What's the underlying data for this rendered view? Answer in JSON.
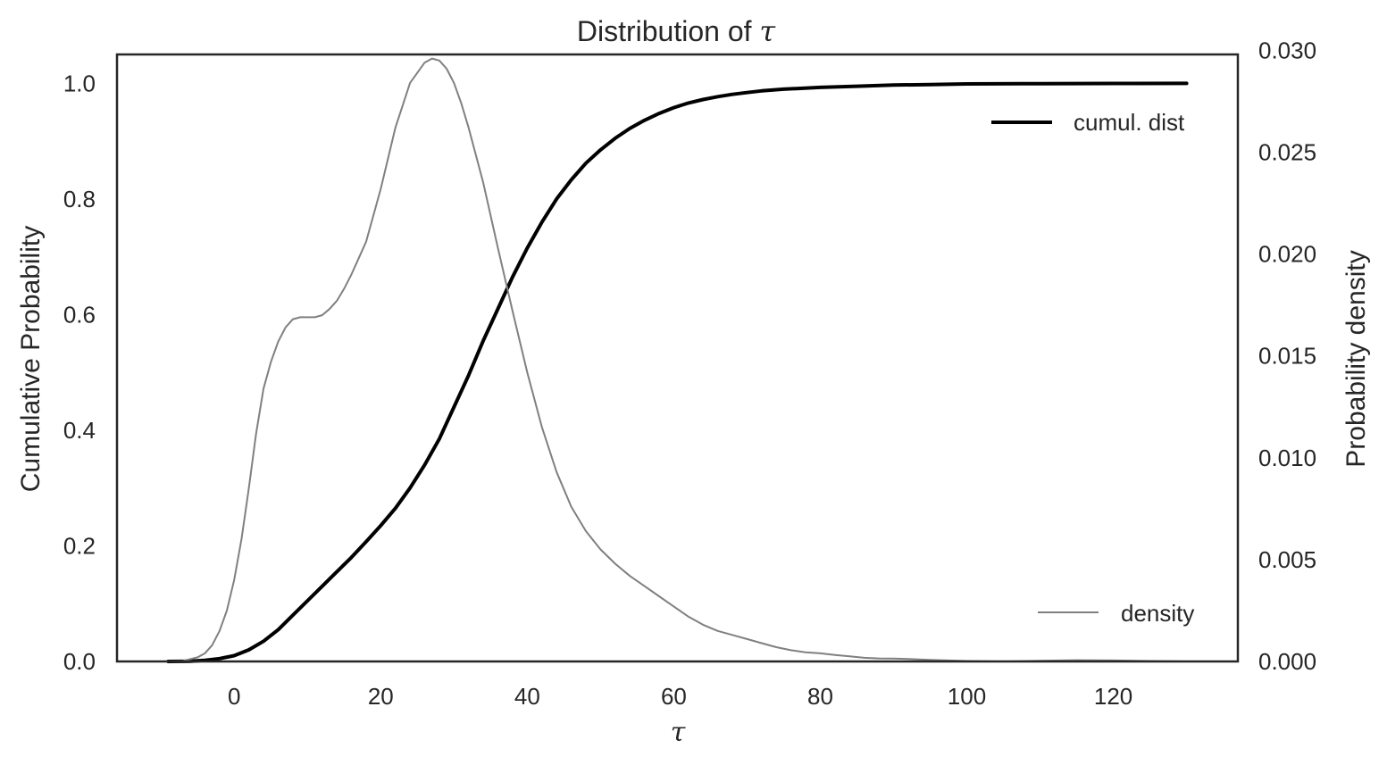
{
  "chart_data": {
    "type": "line",
    "title": "Distribution of",
    "title_symbol": "τ",
    "xlabel": "τ",
    "ylabel_left": "Cumulative Probability",
    "ylabel_right": "Probability density",
    "xlim": [
      -16,
      137
    ],
    "ylim_left": [
      0,
      1.05
    ],
    "ylim_right": [
      0,
      0.0298
    ],
    "x_ticks": [
      0,
      20,
      40,
      60,
      80,
      100,
      120
    ],
    "y_left_ticks": [
      "0.0",
      "0.2",
      "0.4",
      "0.6",
      "0.8",
      "1.0"
    ],
    "y_right_ticks": [
      "0.000",
      "0.005",
      "0.010",
      "0.015",
      "0.020",
      "0.025",
      "0.030"
    ],
    "grid": false,
    "legends": [
      {
        "label": "cumul. dist",
        "placement": "upper right"
      },
      {
        "label": "density",
        "placement": "lower right"
      }
    ],
    "series": [
      {
        "name": "cumul. dist",
        "axis": "left",
        "color": "#000000",
        "x": [
          -9,
          -6,
          -4,
          -2,
          0,
          2,
          4,
          6,
          8,
          10,
          12,
          14,
          16,
          18,
          20,
          22,
          24,
          26,
          28,
          30,
          32,
          34,
          36,
          38,
          40,
          42,
          44,
          46,
          48,
          50,
          52,
          54,
          56,
          58,
          60,
          62,
          64,
          66,
          68,
          70,
          72,
          75,
          80,
          85,
          90,
          95,
          100,
          110,
          120,
          130
        ],
        "y": [
          0.0,
          0.0005,
          0.002,
          0.005,
          0.01,
          0.02,
          0.035,
          0.055,
          0.08,
          0.105,
          0.13,
          0.155,
          0.18,
          0.207,
          0.235,
          0.265,
          0.3,
          0.34,
          0.385,
          0.44,
          0.495,
          0.555,
          0.61,
          0.665,
          0.715,
          0.76,
          0.8,
          0.833,
          0.862,
          0.885,
          0.905,
          0.922,
          0.936,
          0.948,
          0.958,
          0.966,
          0.972,
          0.977,
          0.981,
          0.984,
          0.987,
          0.99,
          0.993,
          0.995,
          0.997,
          0.998,
          0.999,
          0.9995,
          0.9998,
          1.0
        ]
      },
      {
        "name": "density",
        "axis": "right",
        "color": "#808080",
        "x": [
          -9,
          -7,
          -5,
          -4,
          -3,
          -2,
          -1,
          0,
          1,
          2,
          3,
          4,
          5,
          6,
          7,
          8,
          9,
          10,
          11,
          12,
          13,
          14,
          15,
          16,
          17,
          18,
          20,
          22,
          24,
          26,
          27,
          28,
          29,
          30,
          31,
          32,
          34,
          36,
          38,
          40,
          42,
          44,
          46,
          48,
          50,
          52,
          54,
          56,
          58,
          60,
          62,
          64,
          66,
          68,
          70,
          72,
          74,
          76,
          78,
          80,
          82,
          84,
          86,
          88,
          90,
          92,
          95,
          100,
          105,
          110,
          115,
          120,
          125,
          130
        ],
        "y": [
          0.0,
          2e-05,
          0.0002,
          0.0004,
          0.0008,
          0.0015,
          0.0025,
          0.004,
          0.006,
          0.0085,
          0.0112,
          0.0134,
          0.0147,
          0.0157,
          0.0164,
          0.0168,
          0.0169,
          0.0169,
          0.0169,
          0.017,
          0.0173,
          0.0177,
          0.0183,
          0.019,
          0.0198,
          0.0206,
          0.0232,
          0.0262,
          0.0284,
          0.0294,
          0.0296,
          0.0295,
          0.0291,
          0.0284,
          0.0274,
          0.0262,
          0.0235,
          0.0203,
          0.0172,
          0.0142,
          0.0115,
          0.0093,
          0.0076,
          0.0064,
          0.0055,
          0.0048,
          0.0042,
          0.0037,
          0.0032,
          0.0027,
          0.0022,
          0.0018,
          0.0015,
          0.0013,
          0.0011,
          0.0009,
          0.0007,
          0.00055,
          0.00045,
          0.0004,
          0.00032,
          0.00025,
          0.00018,
          0.00015,
          0.00014,
          0.00012,
          8e-05,
          2e-05,
          0.0,
          3e-05,
          6e-05,
          5e-05,
          2e-05,
          0.0
        ]
      }
    ]
  }
}
